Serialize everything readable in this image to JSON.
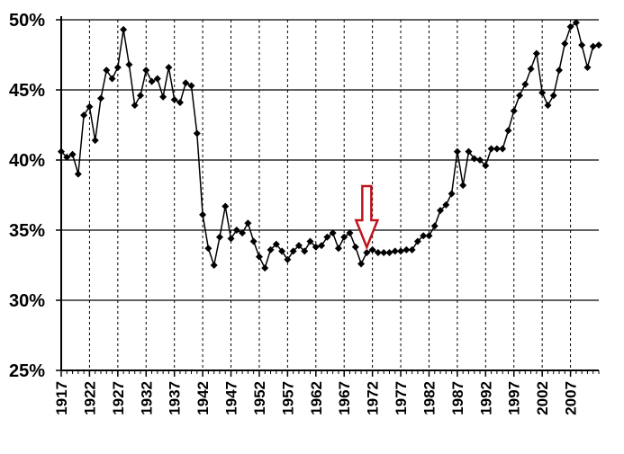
{
  "chart_data": {
    "type": "line",
    "title": "",
    "xlabel": "",
    "ylabel": "",
    "ylim": [
      25,
      50
    ],
    "xlim": [
      1917,
      2012
    ],
    "y_tick_labels": [
      "25%",
      "30%",
      "35%",
      "40%",
      "45%",
      "50%"
    ],
    "x_tick_labels": [
      "1917",
      "1922",
      "1927",
      "1932",
      "1937",
      "1942",
      "1947",
      "1952",
      "1957",
      "1962",
      "1967",
      "1972",
      "1977",
      "1982",
      "1987",
      "1992",
      "1997",
      "2002",
      "2007"
    ],
    "grid": {
      "horizontal": "solid",
      "vertical": "dashed"
    },
    "legend": "none",
    "series_color": "#000000",
    "arrow_color": "#c0141c",
    "annotation": {
      "type": "arrow-down",
      "x": 1971,
      "points_to_y": 33.4
    },
    "series": [
      {
        "x": [
          1917,
          1918,
          1919,
          1920,
          1921,
          1922,
          1923,
          1924,
          1925,
          1926,
          1927,
          1928,
          1929,
          1930,
          1931,
          1932,
          1933,
          1934,
          1935,
          1936,
          1937,
          1938,
          1939,
          1940,
          1941,
          1942,
          1943,
          1944,
          1945,
          1946,
          1947,
          1948,
          1949,
          1950,
          1951,
          1952,
          1953,
          1954,
          1955,
          1956,
          1957,
          1958,
          1959,
          1960,
          1961,
          1962,
          1963,
          1964,
          1965,
          1966,
          1967,
          1968,
          1969,
          1970,
          1971,
          1972,
          1973,
          1974,
          1975,
          1976,
          1977,
          1978,
          1979,
          1980,
          1981,
          1982,
          1983,
          1984,
          1985,
          1986,
          1987,
          1988,
          1989,
          1990,
          1991,
          1992,
          1993,
          1994,
          1995,
          1996,
          1997,
          1998,
          1999,
          2000,
          2001,
          2002,
          2003,
          2004,
          2005,
          2006,
          2007,
          2008,
          2009,
          2010,
          2011,
          2012
        ],
        "y": [
          40.6,
          40.2,
          40.4,
          39.0,
          43.2,
          43.8,
          41.4,
          44.4,
          46.4,
          45.8,
          46.6,
          49.3,
          46.8,
          43.9,
          44.6,
          46.4,
          45.6,
          45.8,
          44.5,
          46.6,
          44.3,
          44.1,
          45.5,
          45.3,
          41.9,
          36.1,
          33.7,
          32.5,
          34.5,
          36.7,
          34.4,
          35.0,
          34.8,
          35.5,
          34.2,
          33.1,
          32.3,
          33.6,
          34.0,
          33.5,
          32.9,
          33.5,
          33.9,
          33.5,
          34.2,
          33.8,
          33.9,
          34.5,
          34.8,
          33.7,
          34.5,
          34.8,
          33.8,
          32.6,
          33.4,
          33.6,
          33.4,
          33.4,
          33.4,
          33.5,
          33.5,
          33.6,
          33.6,
          34.2,
          34.6,
          34.6,
          35.3,
          36.4,
          36.8,
          37.6,
          40.6,
          38.2,
          40.6,
          40.1,
          40.0,
          39.6,
          40.8,
          40.8,
          40.8,
          42.1,
          43.5,
          44.6,
          45.4,
          46.5,
          47.6,
          44.8,
          43.9,
          44.6,
          46.4,
          48.3,
          49.5,
          49.8,
          48.2,
          46.6,
          48.1,
          48.2
        ]
      }
    ]
  }
}
